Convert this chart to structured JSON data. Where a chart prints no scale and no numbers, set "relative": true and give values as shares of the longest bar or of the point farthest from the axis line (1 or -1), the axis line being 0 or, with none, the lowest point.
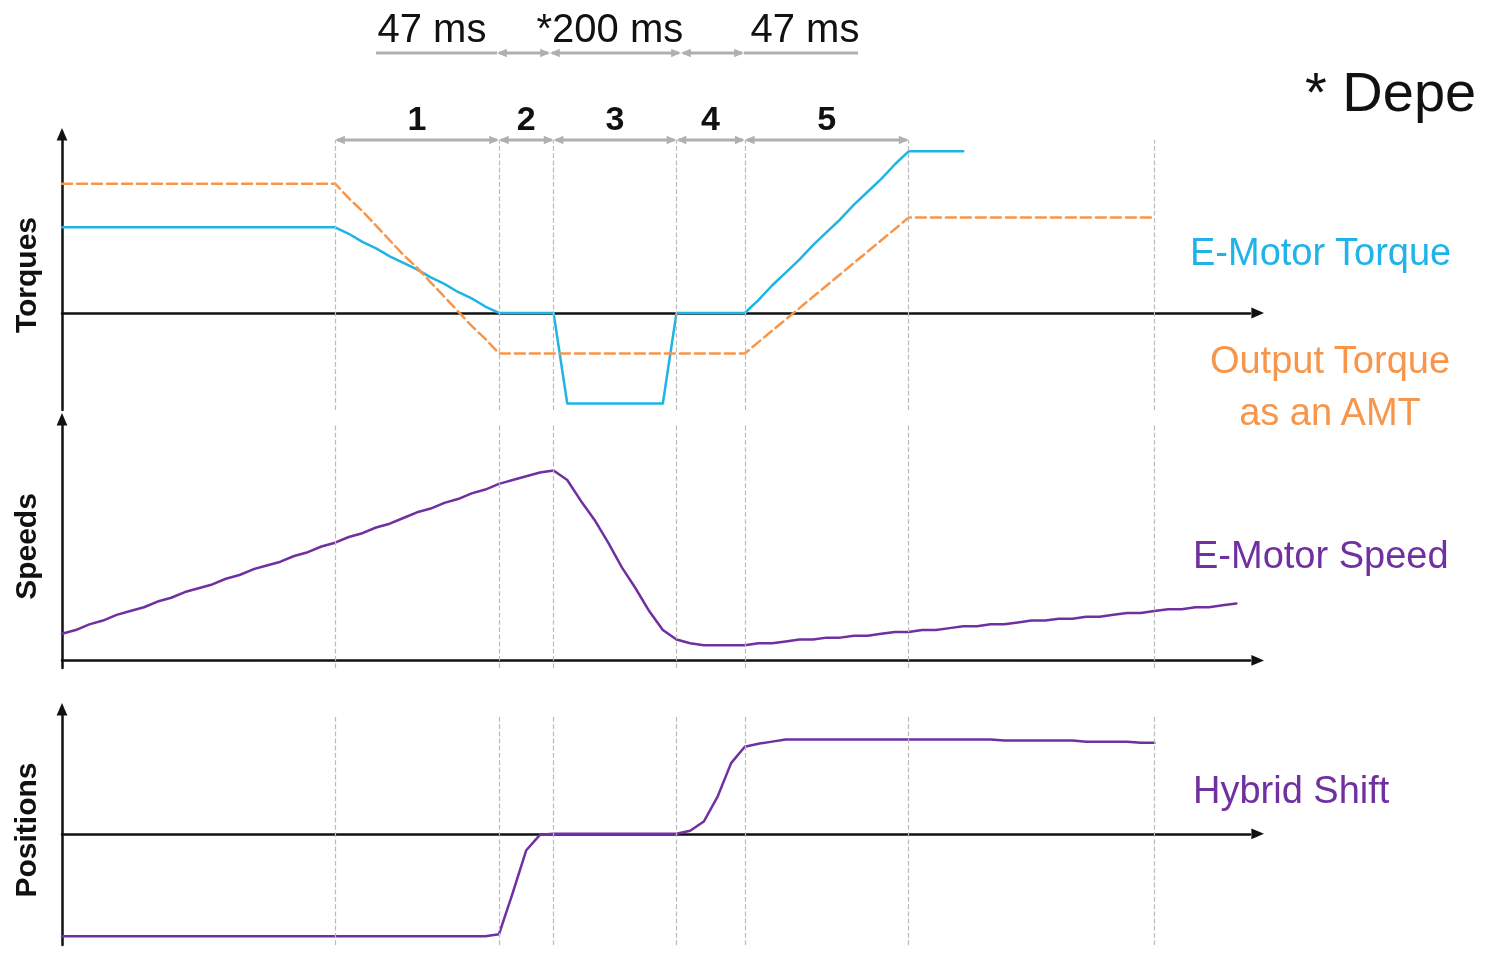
{
  "chart_data": [
    {
      "type": "line",
      "ylabel": "Torques",
      "relative": true,
      "marker": "none",
      "grid": "x",
      "categories": [
        null,
        null,
        null,
        null,
        null,
        null,
        null,
        null,
        null,
        null,
        null,
        null,
        null,
        null,
        null,
        null,
        null,
        null,
        null,
        null,
        null,
        null,
        null,
        null,
        null,
        null,
        null,
        null,
        null,
        null,
        null,
        null,
        null,
        null,
        null,
        null,
        null,
        null,
        null,
        null,
        null,
        null,
        null,
        null,
        null,
        null,
        null,
        null,
        null,
        null,
        null,
        null,
        null,
        null,
        null,
        null,
        null,
        null,
        null,
        null,
        null,
        null,
        null,
        null,
        null,
        null,
        null,
        null,
        null,
        null,
        null,
        null,
        null,
        null,
        null,
        null,
        null,
        null,
        null,
        null,
        null,
        null,
        null,
        null,
        null,
        null,
        null,
        null
      ],
      "series": [
        {
          "name": "E-Motor Torque",
          "color": "#1fb3e8",
          "line_style": "solid",
          "values": [
            0.53,
            0.53,
            0.53,
            0.53,
            0.53,
            0.53,
            0.53,
            0.53,
            0.53,
            0.53,
            0.53,
            0.53,
            0.53,
            0.53,
            0.53,
            0.53,
            0.53,
            0.53,
            0.53,
            0.53,
            0.53,
            0.49,
            0.44,
            0.4,
            0.35,
            0.31,
            0.27,
            0.22,
            0.18,
            0.13,
            0.09,
            0.04,
            0,
            0,
            0,
            0,
            0,
            -0.56,
            -0.56,
            -0.56,
            -0.56,
            -0.56,
            -0.56,
            -0.56,
            -0.56,
            0,
            0,
            0,
            0,
            0,
            0,
            0.08,
            0.17,
            0.25,
            0.33,
            0.42,
            0.5,
            0.58,
            0.67,
            0.75,
            0.83,
            0.92,
            1,
            1,
            1,
            1,
            1,
            null,
            null,
            null,
            null,
            null,
            null,
            null,
            null,
            null,
            null,
            null,
            null,
            null,
            null,
            null,
            null,
            null,
            null,
            null,
            null,
            null
          ]
        },
        {
          "name": "Output Torque as an AMT",
          "color": "#f7964a",
          "line_style": "dashed",
          "values": [
            0.8,
            0.8,
            0.8,
            0.8,
            0.8,
            0.8,
            0.8,
            0.8,
            0.8,
            0.8,
            0.8,
            0.8,
            0.8,
            0.8,
            0.8,
            0.8,
            0.8,
            0.8,
            0.8,
            0.8,
            0.8,
            0.71,
            0.63,
            0.54,
            0.45,
            0.36,
            0.28,
            0.19,
            0.1,
            0.01,
            -0.08,
            -0.16,
            -0.25,
            -0.25,
            -0.25,
            -0.25,
            -0.25,
            -0.25,
            -0.25,
            -0.25,
            -0.25,
            -0.25,
            -0.25,
            -0.25,
            -0.25,
            -0.25,
            -0.25,
            -0.25,
            -0.25,
            -0.25,
            -0.25,
            -0.18,
            -0.11,
            -0.04,
            0.03,
            0.1,
            0.17,
            0.24,
            0.31,
            0.38,
            0.45,
            0.52,
            0.59,
            0.59,
            0.59,
            0.59,
            0.59,
            0.59,
            0.59,
            0.59,
            0.59,
            0.59,
            0.59,
            0.59,
            0.59,
            0.59,
            0.59,
            0.59,
            0.59,
            0.59,
            0.59,
            null,
            null,
            null,
            null,
            null,
            null,
            null
          ]
        }
      ],
      "annotations": [
        "47 ms",
        "*200 ms",
        "47 ms",
        "* Depe",
        "1",
        "2",
        "3",
        "4",
        "5"
      ]
    },
    {
      "type": "line",
      "ylabel": "Speeds",
      "relative": true,
      "marker": "none",
      "grid": "x",
      "categories": [
        null,
        null,
        null,
        null,
        null,
        null,
        null,
        null,
        null,
        null,
        null,
        null,
        null,
        null,
        null,
        null,
        null,
        null,
        null,
        null,
        null,
        null,
        null,
        null,
        null,
        null,
        null,
        null,
        null,
        null,
        null,
        null,
        null,
        null,
        null,
        null,
        null,
        null,
        null,
        null,
        null,
        null,
        null,
        null,
        null,
        null,
        null,
        null,
        null,
        null,
        null,
        null,
        null,
        null,
        null,
        null,
        null,
        null,
        null,
        null,
        null,
        null,
        null,
        null,
        null,
        null,
        null,
        null,
        null,
        null,
        null,
        null,
        null,
        null,
        null,
        null,
        null,
        null,
        null,
        null,
        null,
        null,
        null,
        null,
        null,
        null,
        null,
        null
      ],
      "series": [
        {
          "name": "E-Motor Speed",
          "color": "#7030a0",
          "values": [
            0.14,
            0.16,
            0.19,
            0.21,
            0.24,
            0.26,
            0.28,
            0.31,
            0.33,
            0.36,
            0.38,
            0.4,
            0.43,
            0.45,
            0.48,
            0.5,
            0.52,
            0.55,
            0.57,
            0.6,
            0.62,
            0.65,
            0.67,
            0.7,
            0.72,
            0.75,
            0.78,
            0.8,
            0.83,
            0.85,
            0.88,
            0.9,
            0.93,
            0.95,
            0.97,
            0.99,
            1,
            0.95,
            0.84,
            0.74,
            0.62,
            0.49,
            0.38,
            0.26,
            0.16,
            0.11,
            0.09,
            0.08,
            0.08,
            0.08,
            0.08,
            0.09,
            0.09,
            0.1,
            0.11,
            0.11,
            0.12,
            0.12,
            0.13,
            0.13,
            0.14,
            0.15,
            0.15,
            0.16,
            0.16,
            0.17,
            0.18,
            0.18,
            0.19,
            0.19,
            0.2,
            0.21,
            0.21,
            0.22,
            0.22,
            0.23,
            0.23,
            0.24,
            0.25,
            0.25,
            0.26,
            0.27,
            0.27,
            0.28,
            0.28,
            0.29,
            0.3,
            null
          ]
        }
      ]
    },
    {
      "type": "line",
      "ylabel": "Positions",
      "relative": true,
      "marker": "none",
      "grid": "x",
      "categories": [
        null,
        null,
        null,
        null,
        null,
        null,
        null,
        null,
        null,
        null,
        null,
        null,
        null,
        null,
        null,
        null,
        null,
        null,
        null,
        null,
        null,
        null,
        null,
        null,
        null,
        null,
        null,
        null,
        null,
        null,
        null,
        null,
        null,
        null,
        null,
        null,
        null,
        null,
        null,
        null,
        null,
        null,
        null,
        null,
        null,
        null,
        null,
        null,
        null,
        null,
        null,
        null,
        null,
        null,
        null,
        null,
        null,
        null,
        null,
        null,
        null,
        null,
        null,
        null,
        null,
        null,
        null,
        null,
        null,
        null,
        null,
        null,
        null,
        null,
        null,
        null,
        null,
        null,
        null,
        null,
        null,
        null,
        null,
        null,
        null,
        null,
        null,
        null
      ],
      "series": [
        {
          "name": "Hybrid Shift",
          "color": "#7030a0",
          "values": [
            -1,
            -1,
            -1,
            -1,
            -1,
            -1,
            -1,
            -1,
            -1,
            -1,
            -1,
            -1,
            -1,
            -1,
            -1,
            -1,
            -1,
            -1,
            -1,
            -1,
            -1,
            -1,
            -1,
            -1,
            -1,
            -1,
            -1,
            -1,
            -1,
            -1,
            -1,
            -1,
            -0.98,
            -0.58,
            -0.16,
            -0.01,
            0,
            0,
            0,
            0,
            0,
            0,
            0,
            0,
            0,
            0,
            0.03,
            0.12,
            0.36,
            0.69,
            0.85,
            0.88,
            0.9,
            0.92,
            0.92,
            0.92,
            0.92,
            0.92,
            0.92,
            0.92,
            0.92,
            0.92,
            0.92,
            0.92,
            0.92,
            0.92,
            0.92,
            0.92,
            0.92,
            0.91,
            0.91,
            0.91,
            0.91,
            0.91,
            0.91,
            0.9,
            0.9,
            0.9,
            0.9,
            0.89,
            0.89,
            null,
            null,
            null,
            null,
            null,
            null,
            null
          ]
        }
      ]
    }
  ]
}
